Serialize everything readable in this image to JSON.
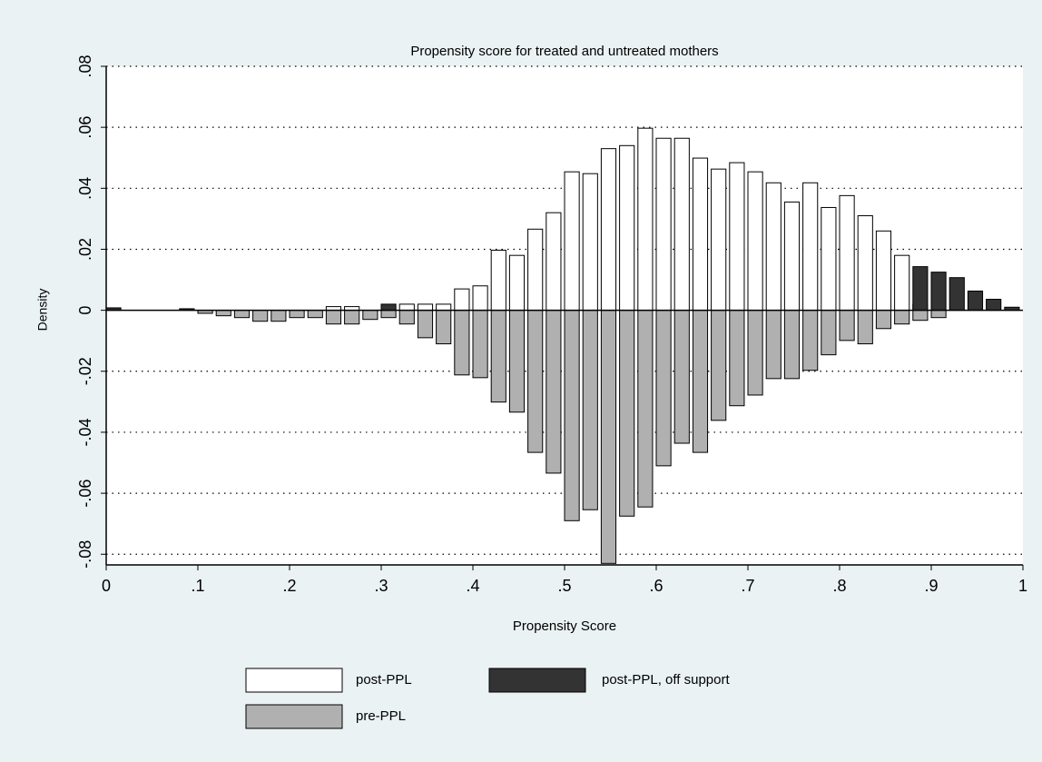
{
  "chart_data": {
    "type": "histogram",
    "title": "Propensity score for treated and untreated mothers",
    "x_label": "Propensity Score",
    "y_label": "Density",
    "bins": [
      0,
      0.02,
      0.04,
      0.06,
      0.08,
      0.1,
      0.12,
      0.14,
      0.16,
      0.18,
      0.2,
      0.22,
      0.24,
      0.26,
      0.28,
      0.3,
      0.32,
      0.34,
      0.36,
      0.38,
      0.4,
      0.42,
      0.44,
      0.46,
      0.48,
      0.5,
      0.52,
      0.54,
      0.56,
      0.58,
      0.6,
      0.62,
      0.64,
      0.66,
      0.68,
      0.7,
      0.72,
      0.74,
      0.76,
      0.78,
      0.8,
      0.82,
      0.84,
      0.86,
      0.88,
      0.9,
      0.92,
      0.94,
      0.96,
      0.98,
      1
    ],
    "series": [
      {
        "name": "post-PPL",
        "color": "#ffffff",
        "values": [
          0,
          0,
          0,
          0,
          0,
          0,
          0,
          0,
          0,
          0,
          0,
          0,
          0.0012,
          0.0012,
          0,
          0,
          0.002,
          0.002,
          0.002,
          0.007,
          0.008,
          0.0197,
          0.018,
          0.0266,
          0.032,
          0.0454,
          0.0448,
          0.053,
          0.054,
          0.0597,
          0.0564,
          0.0564,
          0.0499,
          0.0463,
          0.0484,
          0.0454,
          0.0418,
          0.0355,
          0.0418,
          0.0337,
          0.0376,
          0.031,
          0.026,
          0.018,
          0.002,
          0,
          0,
          0,
          0,
          0
        ]
      },
      {
        "name": "post-PPL, off support",
        "color": "#333333",
        "values": [
          0.0008,
          0,
          0,
          0,
          0.0005,
          0,
          0,
          0,
          0,
          0,
          0,
          0,
          0,
          0,
          0,
          0.002,
          0,
          0,
          0,
          0,
          0,
          0,
          0,
          0,
          0,
          0,
          0,
          0,
          0,
          0,
          0,
          0,
          0,
          0,
          0,
          0,
          0,
          0,
          0,
          0,
          0,
          0,
          0,
          0,
          0.0143,
          0.0125,
          0.0107,
          0.0063,
          0.0036,
          0.001
        ]
      },
      {
        "name": "pre-PPL",
        "color": "#b0b0b0",
        "values": [
          0,
          0,
          0,
          0,
          0,
          -0.001,
          -0.0018,
          -0.0024,
          -0.0036,
          -0.0036,
          -0.0024,
          -0.0024,
          -0.0045,
          -0.0045,
          -0.003,
          -0.0024,
          -0.0045,
          -0.009,
          -0.011,
          -0.0212,
          -0.0221,
          -0.0301,
          -0.0334,
          -0.0466,
          -0.0534,
          -0.069,
          -0.0654,
          -0.083,
          -0.0675,
          -0.0645,
          -0.051,
          -0.0436,
          -0.0466,
          -0.0361,
          -0.0313,
          -0.0278,
          -0.0224,
          -0.0224,
          -0.0197,
          -0.0146,
          -0.0099,
          -0.011,
          -0.006,
          -0.0045,
          -0.0033,
          -0.0024,
          0,
          0,
          0,
          0
        ]
      }
    ],
    "xlim": [
      0,
      1
    ],
    "xticks": [
      0,
      {
        "value": 0.1,
        "label": ".1"
      },
      {
        "value": 0.2,
        "label": ".2"
      },
      {
        "value": 0.3,
        "label": ".3"
      },
      {
        "value": 0.4,
        "label": ".4"
      },
      {
        "value": 0.5,
        "label": ".5"
      },
      {
        "value": 0.6,
        "label": ".6"
      },
      {
        "value": 0.7,
        "label": ".7"
      },
      {
        "value": 0.8,
        "label": ".8"
      },
      {
        "value": 0.9,
        "label": ".9"
      },
      1
    ],
    "ylim": [
      -0.0835,
      0.08
    ],
    "yticks": [
      {
        "value": -0.08,
        "label": "-.08"
      },
      {
        "value": -0.06,
        "label": "-.06"
      },
      {
        "value": -0.04,
        "label": "-.04"
      },
      {
        "value": -0.02,
        "label": "-.02"
      },
      0,
      {
        "value": 0.02,
        "label": ".02"
      },
      {
        "value": 0.04,
        "label": ".04"
      },
      {
        "value": 0.06,
        "label": ".06"
      },
      {
        "value": 0.08,
        "label": ".08"
      }
    ],
    "grid": true,
    "legend": "bottom"
  }
}
